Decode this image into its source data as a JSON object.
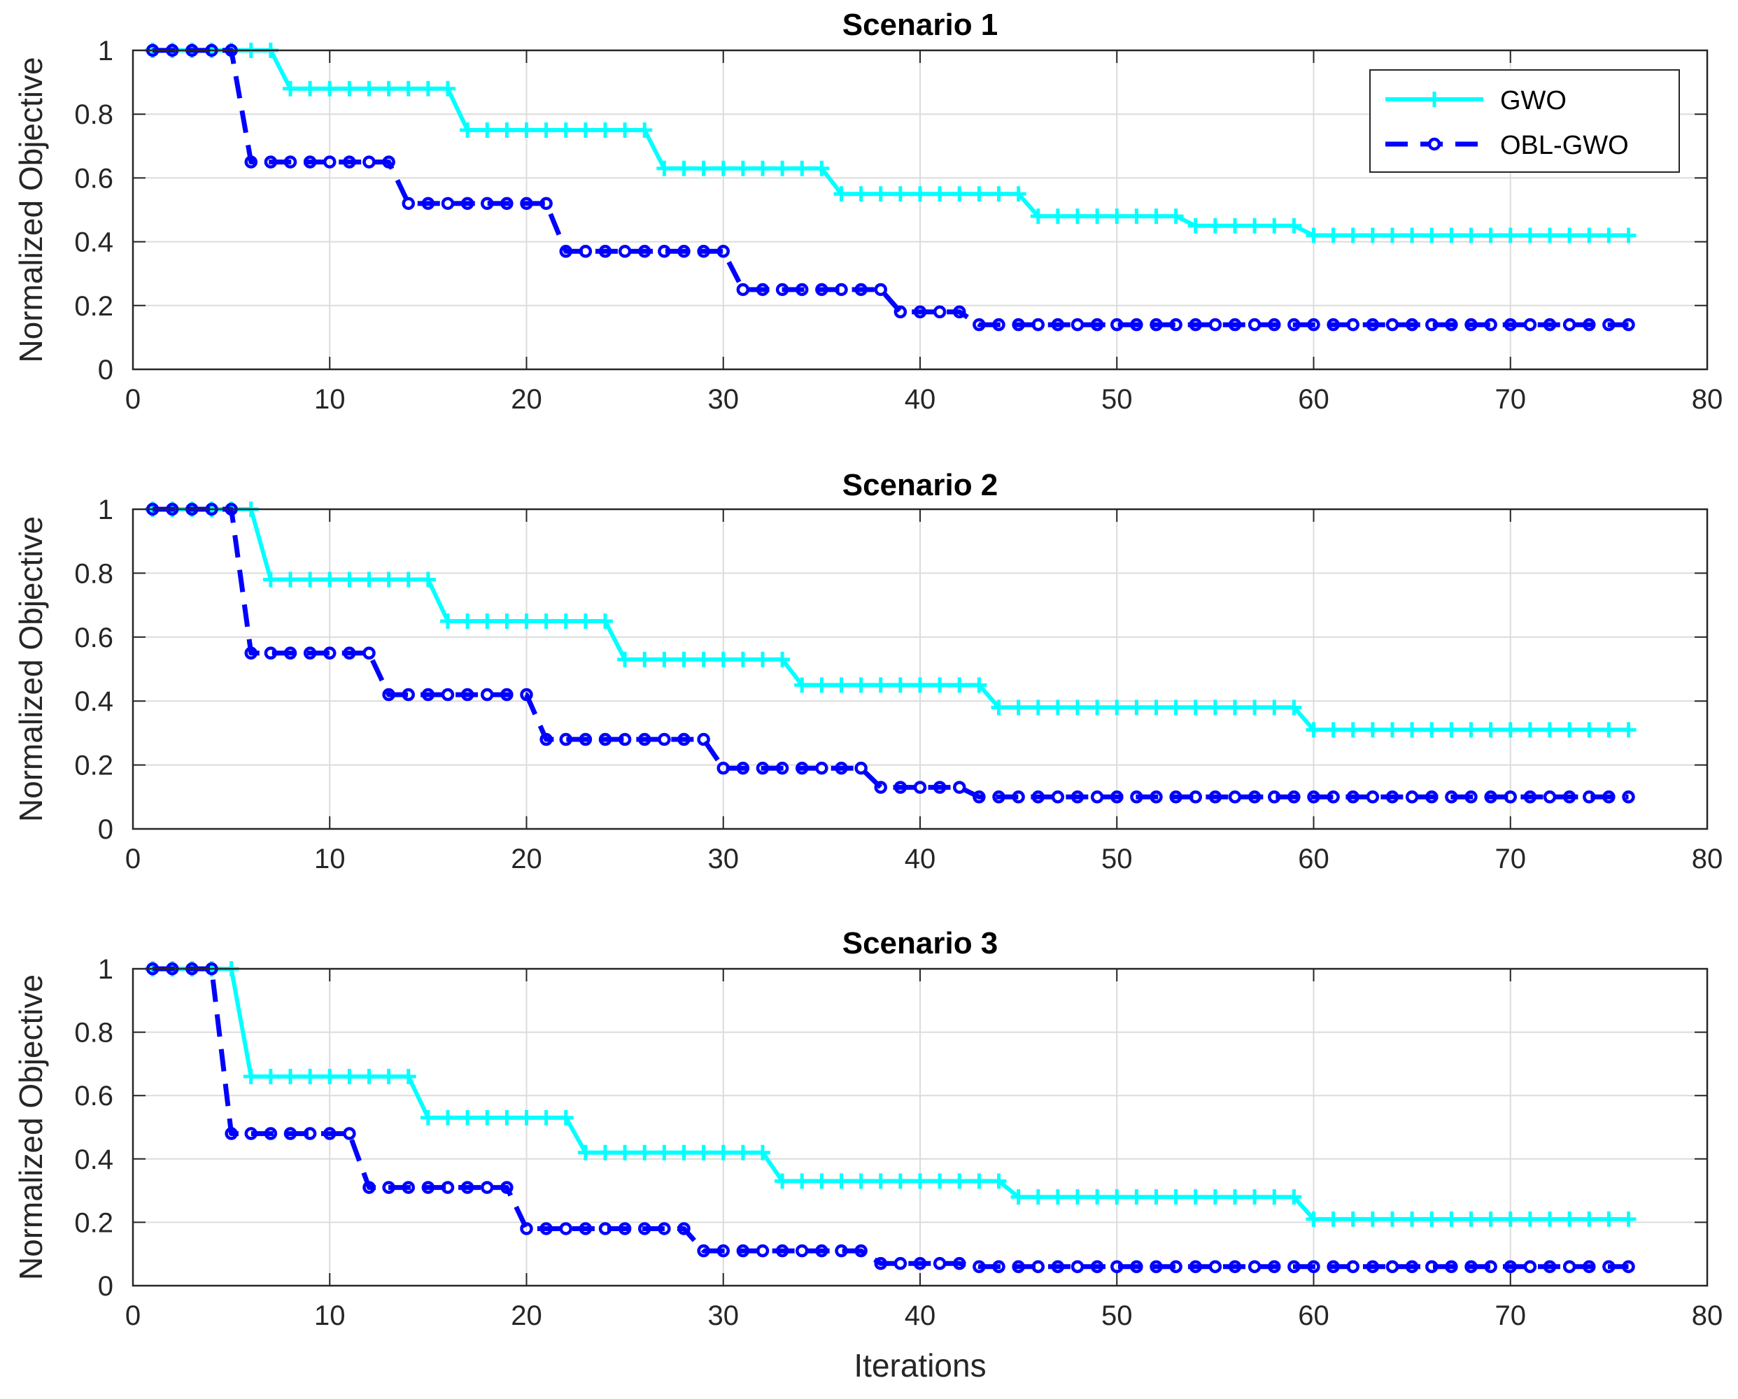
{
  "chart_data": [
    {
      "type": "line",
      "title": "Scenario 1",
      "xlabel": "",
      "ylabel": "Normalized Objective",
      "xlim": [
        0,
        80
      ],
      "ylim": [
        0,
        1
      ],
      "xticks": [
        0,
        10,
        20,
        30,
        40,
        50,
        60,
        70,
        80
      ],
      "yticks": [
        0,
        0.2,
        0.4,
        0.6,
        0.8,
        1
      ],
      "grid": true,
      "legend": "top-right",
      "series": [
        {
          "name": "GWO",
          "color": "#00FFFF",
          "marker": "plus",
          "linestyle": "solid",
          "steps": [
            [
              1,
              1.0
            ],
            [
              8,
              0.88
            ],
            [
              17,
              0.75
            ],
            [
              27,
              0.63
            ],
            [
              36,
              0.55
            ],
            [
              46,
              0.48
            ],
            [
              54,
              0.45
            ],
            [
              60,
              0.42
            ]
          ]
        },
        {
          "name": "OBL-GWO",
          "color": "#0000FF",
          "marker": "circle",
          "linestyle": "dashed",
          "steps": [
            [
              1,
              1.0
            ],
            [
              6,
              0.65
            ],
            [
              14,
              0.52
            ],
            [
              22,
              0.37
            ],
            [
              31,
              0.25
            ],
            [
              39,
              0.18
            ],
            [
              43,
              0.14
            ]
          ]
        }
      ]
    },
    {
      "type": "line",
      "title": "Scenario 2",
      "xlabel": "",
      "ylabel": "Normalized Objective",
      "xlim": [
        0,
        80
      ],
      "ylim": [
        0,
        1
      ],
      "xticks": [
        0,
        10,
        20,
        30,
        40,
        50,
        60,
        70,
        80
      ],
      "yticks": [
        0,
        0.2,
        0.4,
        0.6,
        0.8,
        1
      ],
      "grid": true,
      "legend": "",
      "series": [
        {
          "name": "GWO",
          "color": "#00FFFF",
          "marker": "plus",
          "linestyle": "solid",
          "steps": [
            [
              1,
              1.0
            ],
            [
              7,
              0.78
            ],
            [
              16,
              0.65
            ],
            [
              25,
              0.53
            ],
            [
              34,
              0.45
            ],
            [
              44,
              0.38
            ],
            [
              60,
              0.31
            ]
          ]
        },
        {
          "name": "OBL-GWO",
          "color": "#0000FF",
          "marker": "circle",
          "linestyle": "dashed",
          "steps": [
            [
              1,
              1.0
            ],
            [
              6,
              0.55
            ],
            [
              13,
              0.42
            ],
            [
              21,
              0.28
            ],
            [
              30,
              0.19
            ],
            [
              38,
              0.13
            ],
            [
              43,
              0.1
            ]
          ]
        }
      ]
    },
    {
      "type": "line",
      "title": "Scenario 3",
      "xlabel": "Iterations",
      "ylabel": "Normalized Objective",
      "xlim": [
        0,
        80
      ],
      "ylim": [
        0,
        1
      ],
      "xticks": [
        0,
        10,
        20,
        30,
        40,
        50,
        60,
        70,
        80
      ],
      "yticks": [
        0,
        0.2,
        0.4,
        0.6,
        0.8,
        1
      ],
      "grid": true,
      "legend": "",
      "series": [
        {
          "name": "GWO",
          "color": "#00FFFF",
          "marker": "plus",
          "linestyle": "solid",
          "steps": [
            [
              1,
              1.0
            ],
            [
              6,
              0.66
            ],
            [
              15,
              0.53
            ],
            [
              23,
              0.42
            ],
            [
              33,
              0.33
            ],
            [
              45,
              0.28
            ],
            [
              60,
              0.21
            ]
          ]
        },
        {
          "name": "OBL-GWO",
          "color": "#0000FF",
          "marker": "circle",
          "linestyle": "dashed",
          "steps": [
            [
              1,
              1.0
            ],
            [
              5,
              0.48
            ],
            [
              12,
              0.31
            ],
            [
              20,
              0.18
            ],
            [
              29,
              0.11
            ],
            [
              38,
              0.07
            ],
            [
              43,
              0.06
            ]
          ]
        }
      ]
    }
  ],
  "last_iteration": 76
}
